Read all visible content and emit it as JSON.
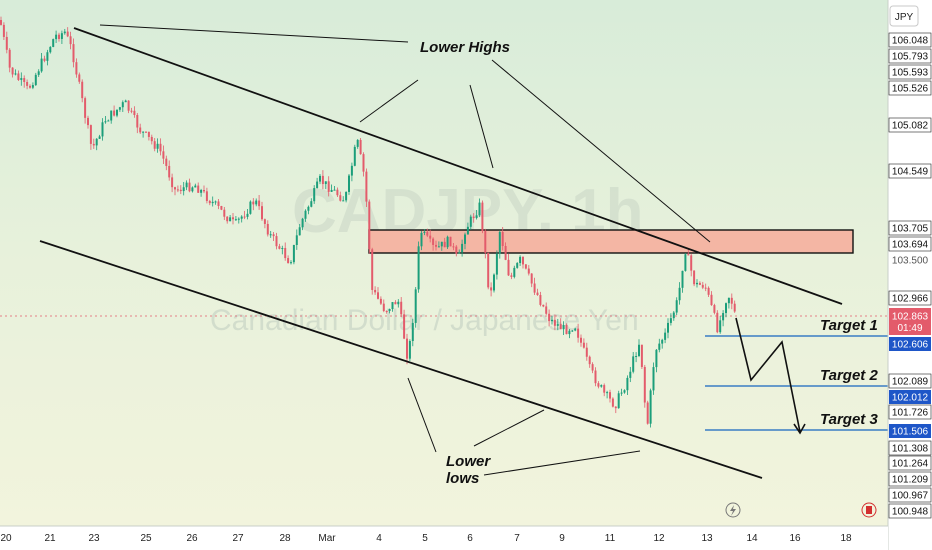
{
  "chart_data": {
    "type": "candlestick",
    "title": "CADJPY, 1h",
    "watermark": {
      "ticker": "CADJPY, 1h",
      "name": "Canadian Dollar / Japanese Yen"
    },
    "currency": "JPY",
    "x_ticks": [
      "20",
      "21",
      "23",
      "25",
      "26",
      "27",
      "28",
      "Mar",
      "4",
      "5",
      "6",
      "7",
      "9",
      "11",
      "12",
      "13",
      "14",
      "16",
      "18"
    ],
    "y_range": [
      100.93,
      106.07
    ],
    "price_axis_labels": [
      {
        "value": "106.048",
        "style": "plain"
      },
      {
        "value": "105.793",
        "style": "plain"
      },
      {
        "value": "105.593",
        "style": "plain"
      },
      {
        "value": "105.526",
        "style": "plain"
      },
      {
        "value": "105.082",
        "style": "plain"
      },
      {
        "value": "104.549",
        "style": "plain"
      },
      {
        "value": "103.705",
        "style": "plain"
      },
      {
        "value": "103.694",
        "style": "plain"
      },
      {
        "value": "103.500",
        "style": "tick"
      },
      {
        "value": "102.966",
        "style": "plain"
      },
      {
        "value": "102.863",
        "style": "last"
      },
      {
        "value": "102.606",
        "style": "blue"
      },
      {
        "value": "102.089",
        "style": "plain"
      },
      {
        "value": "102.012",
        "style": "blue"
      },
      {
        "value": "101.726",
        "style": "plain"
      },
      {
        "value": "101.506",
        "style": "blue"
      },
      {
        "value": "101.308",
        "style": "plain"
      },
      {
        "value": "101.264",
        "style": "plain"
      },
      {
        "value": "101.209",
        "style": "plain"
      },
      {
        "value": "100.967",
        "style": "plain"
      },
      {
        "value": "100.948",
        "style": "plain"
      }
    ],
    "last_price": "102.863",
    "countdown": "01:49",
    "resistance_zone": {
      "top": 103.705,
      "bottom": 103.48
    },
    "targets": [
      {
        "name": "Target 1",
        "price": 102.606
      },
      {
        "name": "Target 2",
        "price": 102.012
      },
      {
        "name": "Target 3",
        "price": 101.506
      }
    ],
    "annotations": {
      "lower_highs": "Lower Highs",
      "lower_lows_line1": "Lower",
      "lower_lows_line2": "lows"
    },
    "up_color": "#1b9e7a",
    "down_color": "#e35b6b",
    "target_color": "#1565c0",
    "zone_fill": "#f4b6a4",
    "last_price_color": "#e35b6b",
    "target_label_color": "#1e56c8"
  }
}
